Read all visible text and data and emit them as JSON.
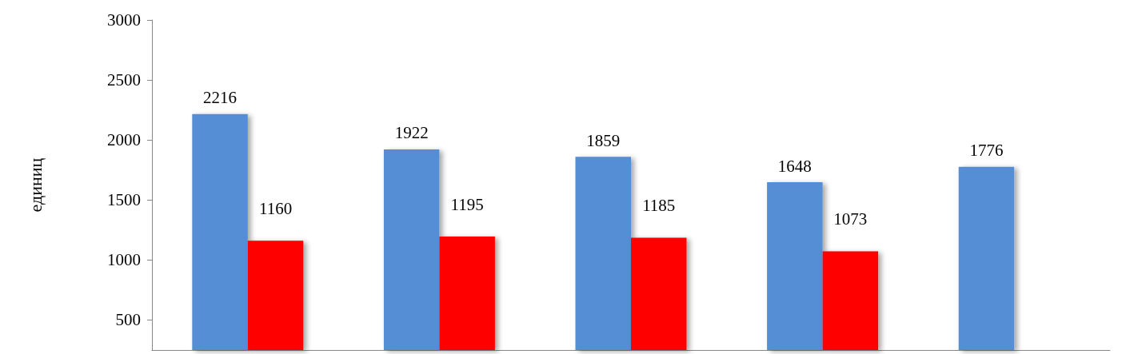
{
  "chart_data": {
    "type": "bar",
    "ylabel": "единиц",
    "categories": [
      null,
      null,
      null,
      null,
      null
    ],
    "series": [
      {
        "color": "#558ed5",
        "values": [
          2216,
          1922,
          1859,
          1648,
          1776
        ]
      },
      {
        "color": "#ff0000",
        "values": [
          1160,
          1195,
          1185,
          1073,
          null
        ]
      }
    ],
    "ylim": [
      250,
      3000
    ],
    "yticks": [
      500,
      1000,
      1500,
      2000,
      2500,
      3000
    ],
    "data_labels": true,
    "grid": false,
    "tick_labels": "y"
  }
}
